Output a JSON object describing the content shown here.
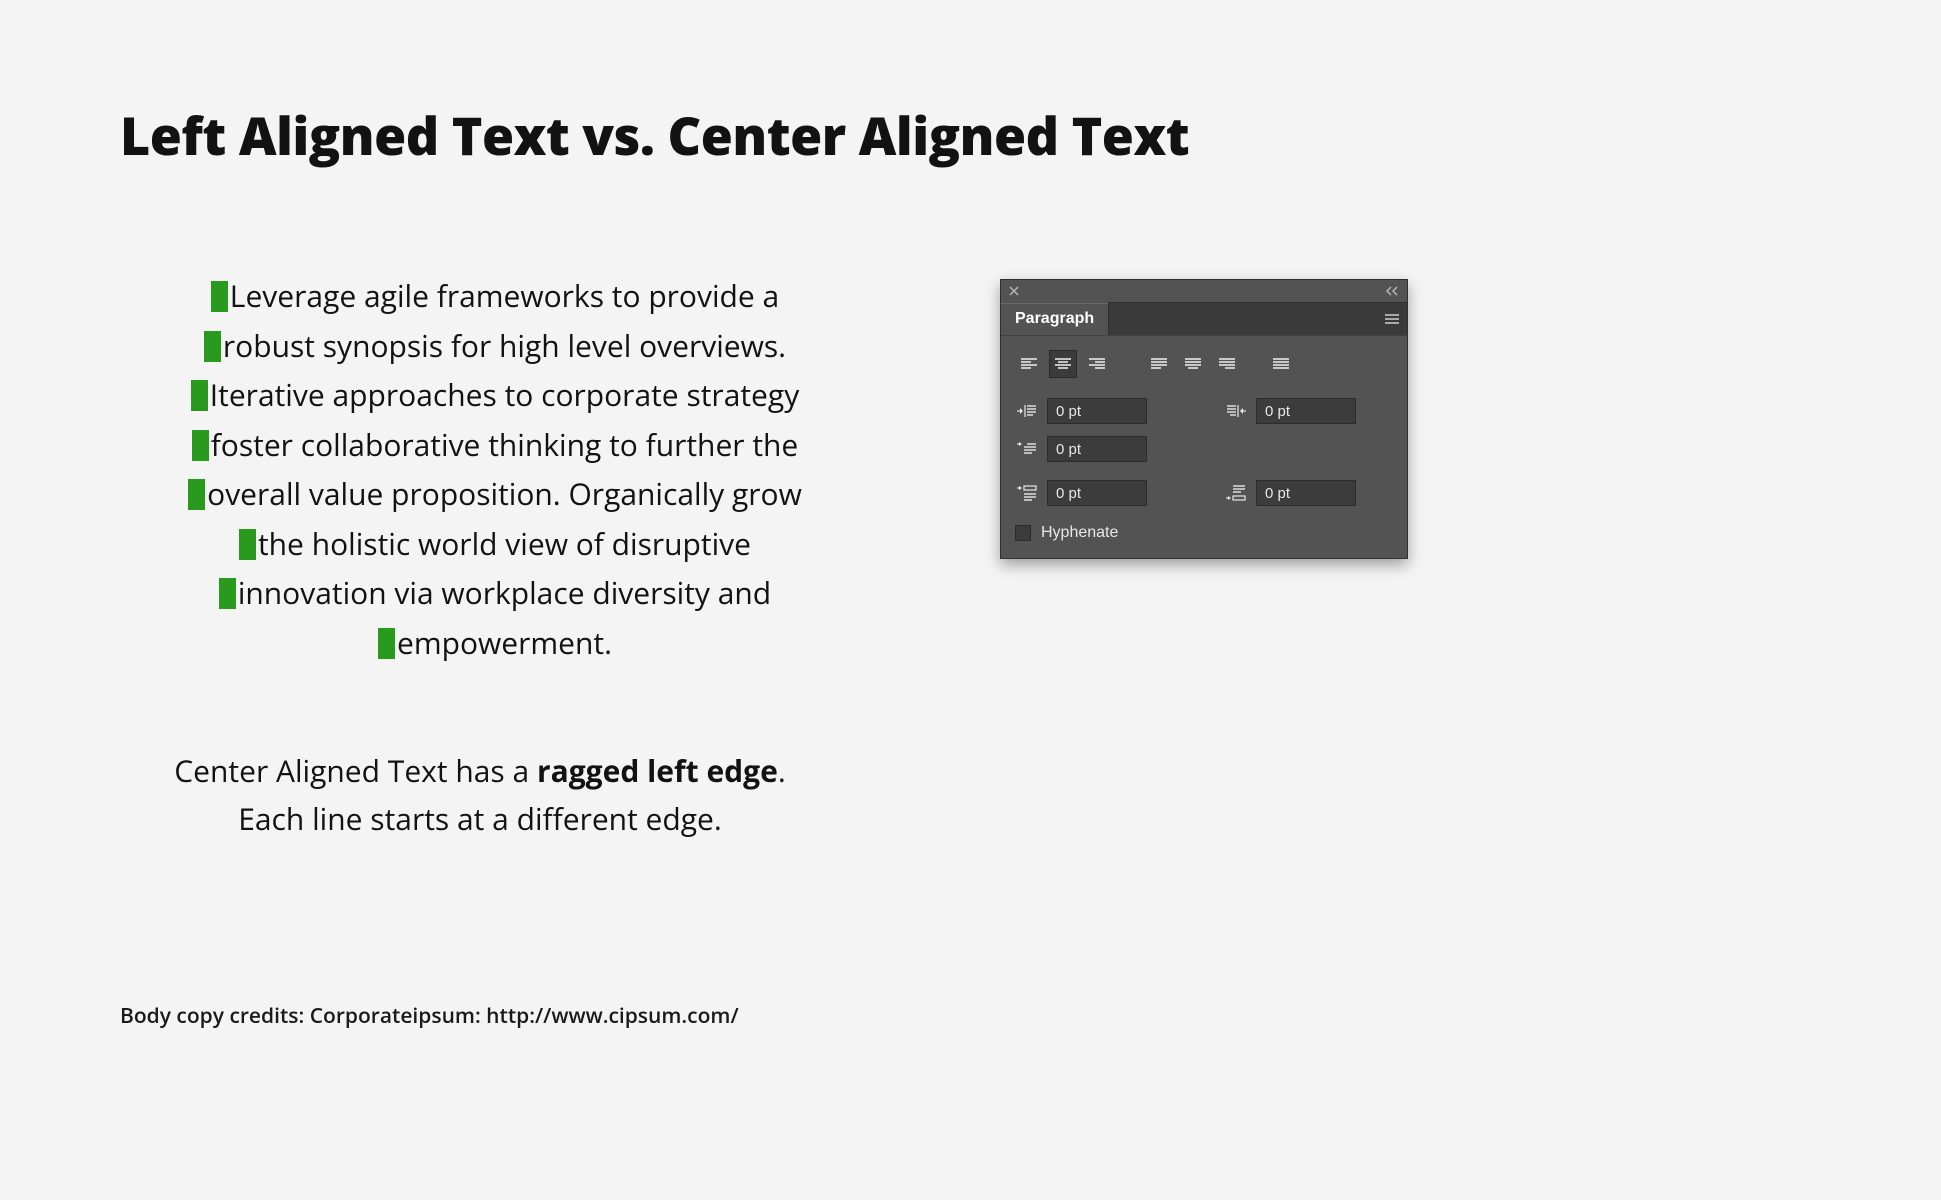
{
  "title": "Left Aligned Text vs. Center Aligned Text",
  "sample_lines": [
    "Leverage agile frameworks to provide a",
    "robust synopsis for high level overviews.",
    "Iterative approaches to corporate strategy",
    "foster collaborative thinking to further the",
    "overall value proposition. Organically grow",
    "the holistic world view of disruptive",
    "innovation via workplace diversity and",
    "empowerment."
  ],
  "caption_pre": "Center Aligned Text has a ",
  "caption_bold": "ragged left edge",
  "caption_post": ".",
  "caption_line2": "Each line starts at a different edge.",
  "credits": "Body copy credits: Corporateipsum: http://www.cipsum.com/",
  "marker_color": "#2a9a1f",
  "panel": {
    "title": "Paragraph",
    "align_active_index": 1,
    "indent_left": "0 pt",
    "indent_right": "0 pt",
    "indent_first": "0 pt",
    "space_before": "0 pt",
    "space_after": "0 pt",
    "hyphenate_label": "Hyphenate",
    "hyphenate_checked": false,
    "bg": "#535353",
    "input_bg": "#3c3c3c",
    "icon_stroke": "#e7e7e7"
  }
}
